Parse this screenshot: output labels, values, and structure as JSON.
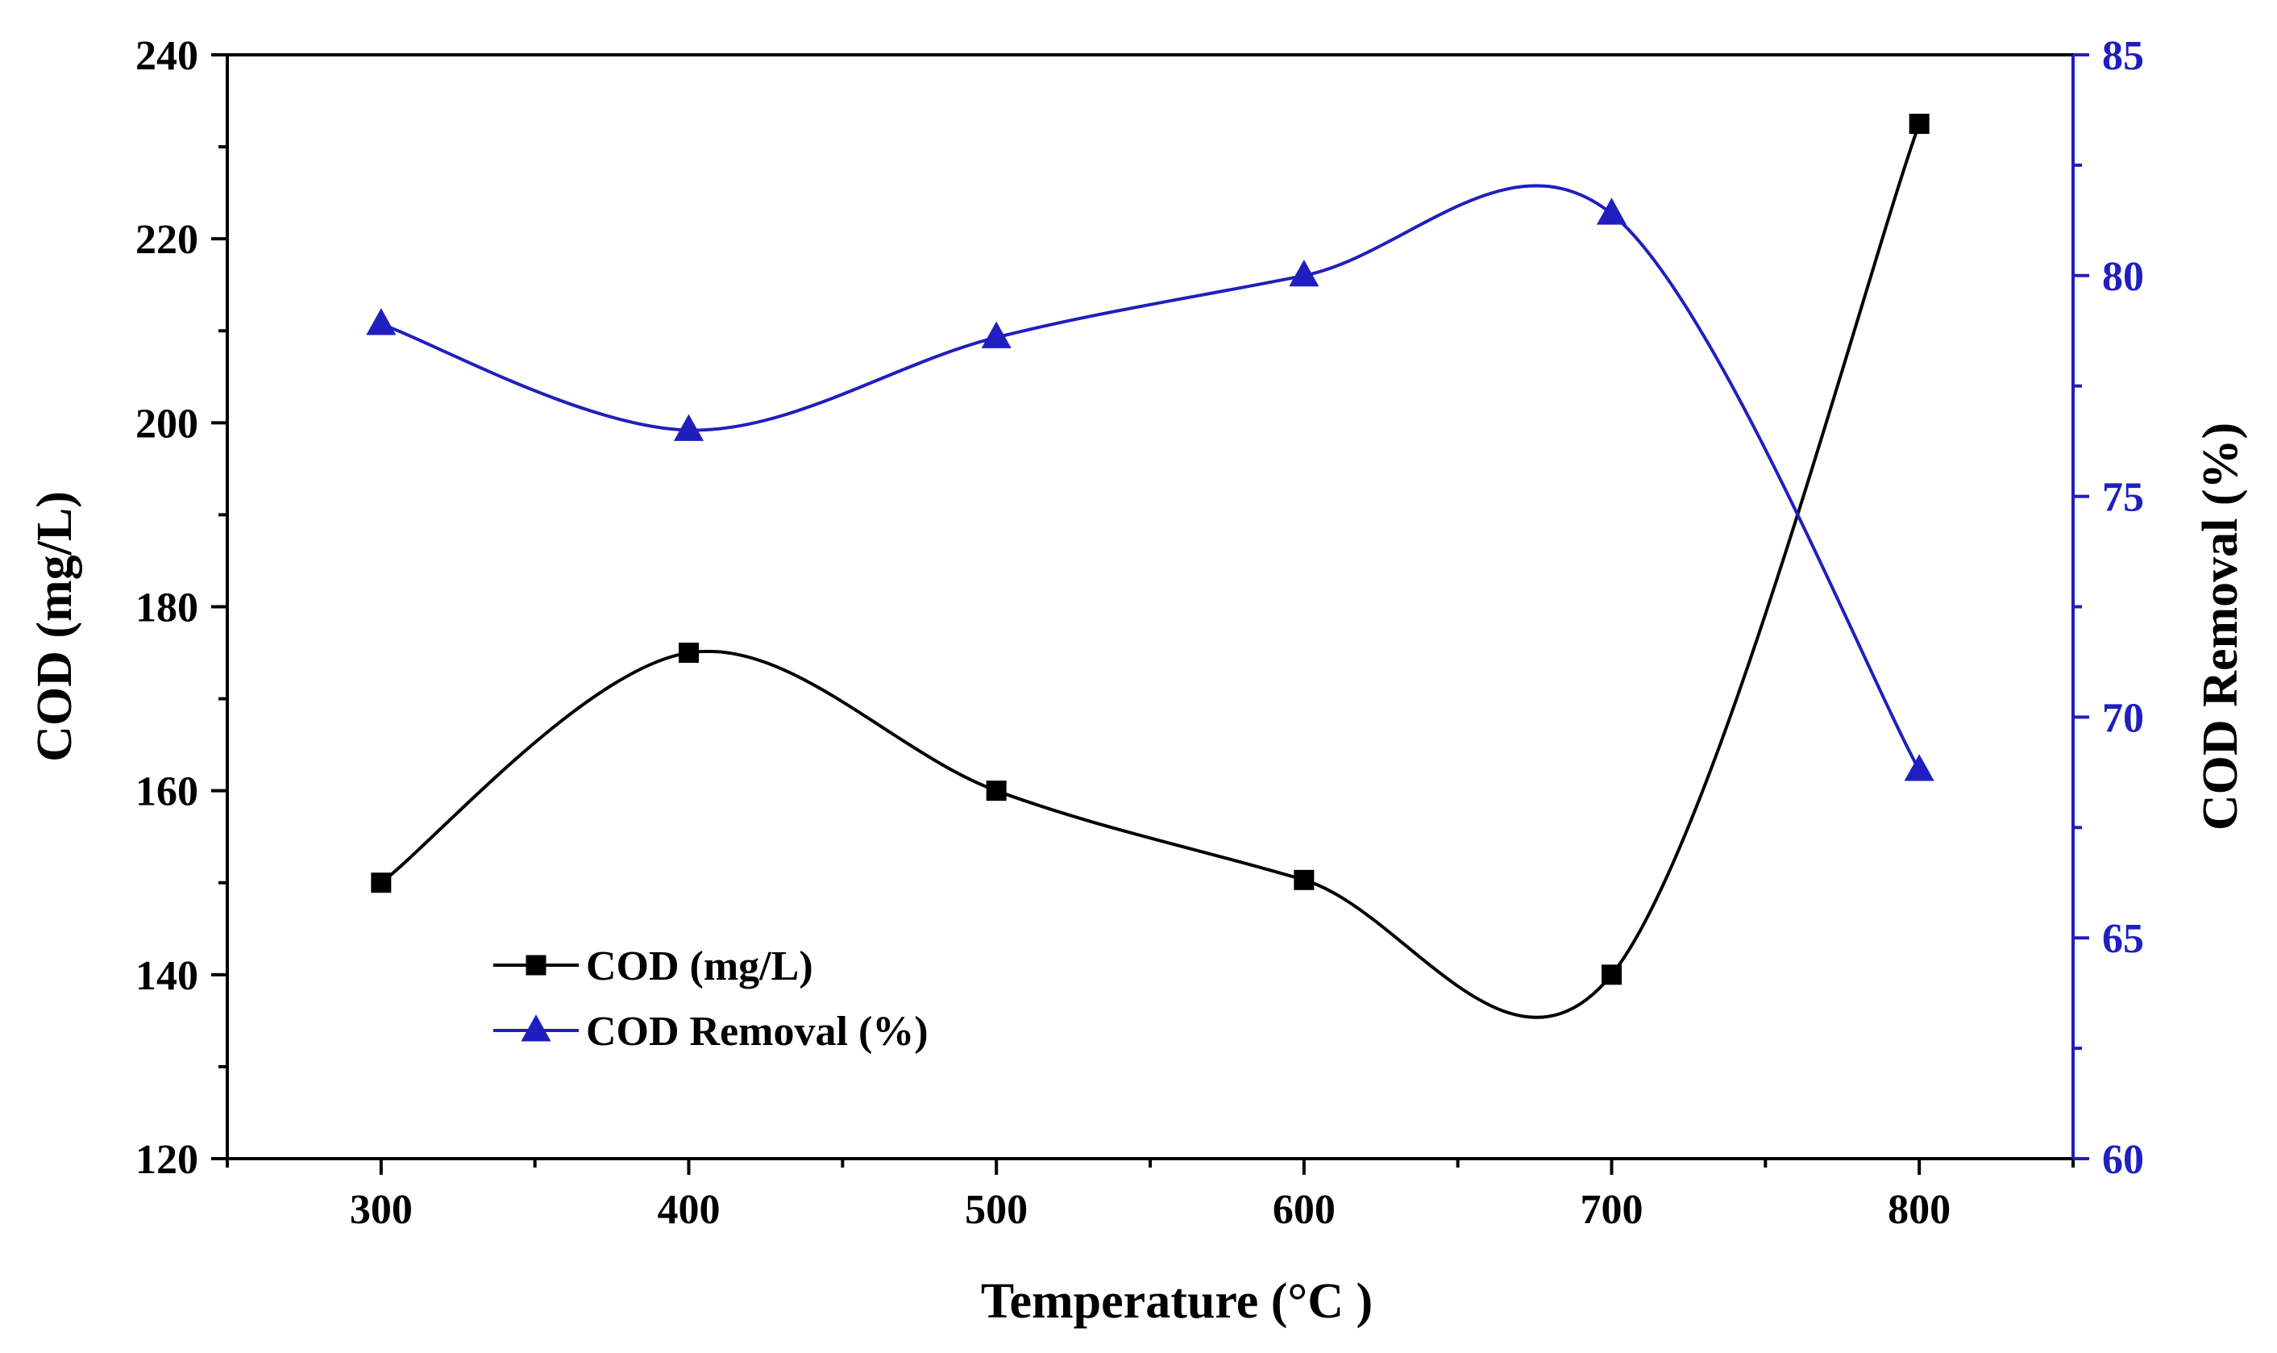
{
  "chart_data": {
    "type": "line",
    "title": "",
    "xlabel": "Temperature (°C )",
    "ylabel_left": "COD (mg/L)",
    "ylabel_right": "COD Removal (%)",
    "xlim": [
      250,
      850
    ],
    "ylim_left": [
      120,
      240
    ],
    "ylim_right": [
      60,
      85
    ],
    "x_ticks": [
      300,
      400,
      500,
      600,
      700,
      800
    ],
    "y_left_ticks": [
      120,
      140,
      160,
      180,
      200,
      220,
      240
    ],
    "y_right_ticks": [
      60,
      65,
      70,
      75,
      80,
      85
    ],
    "grid": false,
    "legend_position": "lower-left",
    "x": [
      300,
      400,
      500,
      600,
      700,
      800
    ],
    "series": [
      {
        "name": "COD (mg/L)",
        "axis": "left",
        "marker": "square",
        "color": "#000000",
        "values": [
          150,
          175,
          160,
          150.3,
          140,
          232.5
        ]
      },
      {
        "name": "COD Removal (%)",
        "axis": "right",
        "marker": "triangle",
        "color": "#1f1fbf",
        "values": [
          78.9,
          76.5,
          78.6,
          80.0,
          81.4,
          68.8
        ]
      }
    ],
    "colors": {
      "left_axis": "#000000",
      "right_axis": "#1f1fbf"
    }
  }
}
